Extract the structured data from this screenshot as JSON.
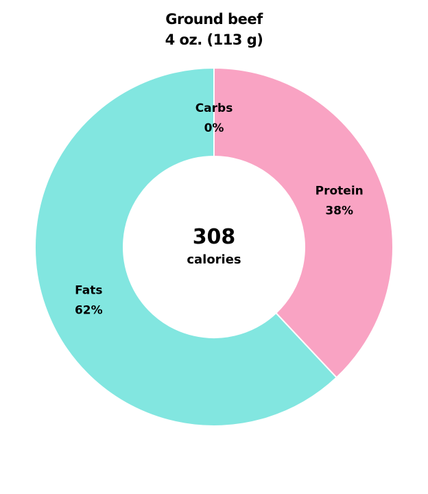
{
  "chart_data": {
    "type": "pie",
    "title": "Ground beef",
    "subtitle": "4 oz. (113 g)",
    "center_value": "308",
    "center_label": "calories",
    "slices": [
      {
        "label": "Carbs",
        "value": 0,
        "display": "0%",
        "color": "#ffffff"
      },
      {
        "label": "Protein",
        "value": 38,
        "display": "38%",
        "color": "#f9a3c3"
      },
      {
        "label": "Fats",
        "value": 62,
        "display": "62%",
        "color": "#82e6e0"
      }
    ]
  }
}
